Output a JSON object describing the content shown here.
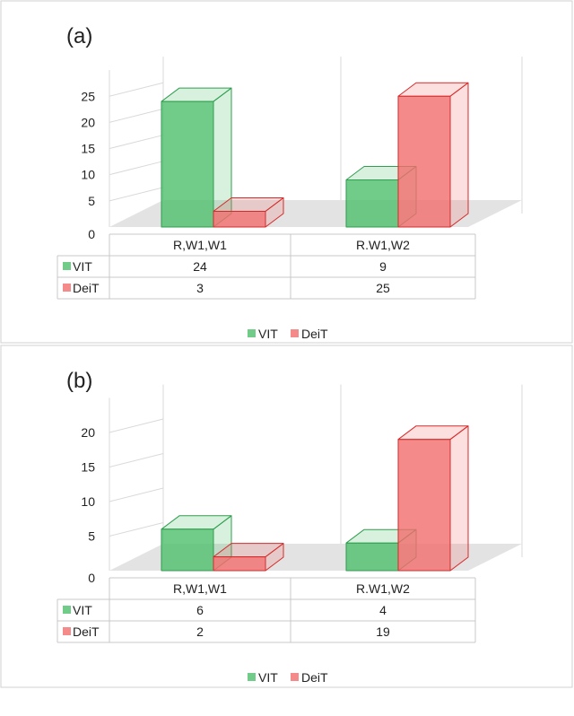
{
  "colors": {
    "vit": "#4cbf6a",
    "vit_stroke": "#2f9e4f",
    "deit": "#f26d6d",
    "deit_stroke": "#d62a2a",
    "floor": "#e3e3e3",
    "frame": "#b7b7b7",
    "grid": "#d9d9d9"
  },
  "chart_data": [
    {
      "type": "bar",
      "panel_label": "(a)",
      "categories": [
        "R,W1,W1",
        "R.W1,W2"
      ],
      "series": [
        {
          "name": "VIT",
          "values": [
            24,
            9
          ]
        },
        {
          "name": "DeiT",
          "values": [
            3,
            25
          ]
        }
      ],
      "yticks": [
        0,
        5,
        10,
        15,
        20,
        25
      ],
      "ylim": [
        0,
        30
      ],
      "legend": "bottom",
      "data_table": true,
      "grid": true
    },
    {
      "type": "bar",
      "panel_label": "(b)",
      "categories": [
        "R,W1,W1",
        "R.W1,W2"
      ],
      "series": [
        {
          "name": "VIT",
          "values": [
            6,
            4
          ]
        },
        {
          "name": "DeiT",
          "values": [
            2,
            19
          ]
        }
      ],
      "yticks": [
        0,
        5,
        10,
        15,
        20
      ],
      "ylim": [
        0,
        25
      ],
      "legend": "bottom",
      "data_table": true,
      "grid": true
    }
  ]
}
